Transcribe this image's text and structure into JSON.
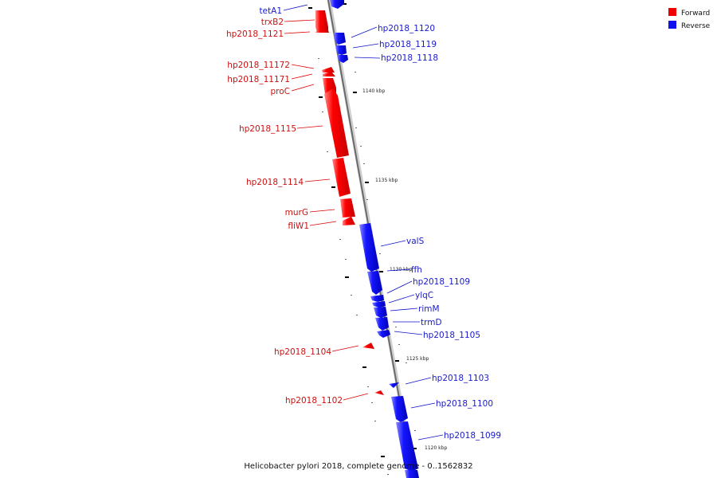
{
  "caption": "Helicobacter pylori 2018, complete genome - 0..1562832",
  "legend": [
    {
      "label": "Forward",
      "color": "#ee0000"
    },
    {
      "label": "Reverse",
      "color": "#1111ee"
    }
  ],
  "tick_labels": [
    "1140 kbp",
    "1135 kbp",
    "1130 kbp",
    "1125 kbp",
    "1120 kbp"
  ],
  "genes": [
    {
      "name": "tetA1",
      "strand": "reverse"
    },
    {
      "name": "trxB2",
      "strand": "forward"
    },
    {
      "name": "hp2018_1121",
      "strand": "forward"
    },
    {
      "name": "hp2018_1120",
      "strand": "reverse"
    },
    {
      "name": "hp2018_1119",
      "strand": "reverse"
    },
    {
      "name": "hp2018_1118",
      "strand": "reverse"
    },
    {
      "name": "hp2018_11172",
      "strand": "forward"
    },
    {
      "name": "hp2018_11171",
      "strand": "forward"
    },
    {
      "name": "proC",
      "strand": "forward"
    },
    {
      "name": "hp2018_1115",
      "strand": "forward"
    },
    {
      "name": "hp2018_1114",
      "strand": "forward"
    },
    {
      "name": "murG",
      "strand": "forward"
    },
    {
      "name": "fliW1",
      "strand": "forward"
    },
    {
      "name": "valS",
      "strand": "reverse"
    },
    {
      "name": "ffh",
      "strand": "reverse"
    },
    {
      "name": "hp2018_1109",
      "strand": "reverse"
    },
    {
      "name": "ylqC",
      "strand": "reverse"
    },
    {
      "name": "rimM",
      "strand": "reverse"
    },
    {
      "name": "trmD",
      "strand": "reverse"
    },
    {
      "name": "hp2018_1105",
      "strand": "reverse"
    },
    {
      "name": "hp2018_1104",
      "strand": "forward"
    },
    {
      "name": "hp2018_1103",
      "strand": "reverse"
    },
    {
      "name": "hp2018_1102",
      "strand": "forward"
    },
    {
      "name": "hp2018_1100",
      "strand": "reverse"
    },
    {
      "name": "hp2018_1099",
      "strand": "reverse"
    }
  ]
}
